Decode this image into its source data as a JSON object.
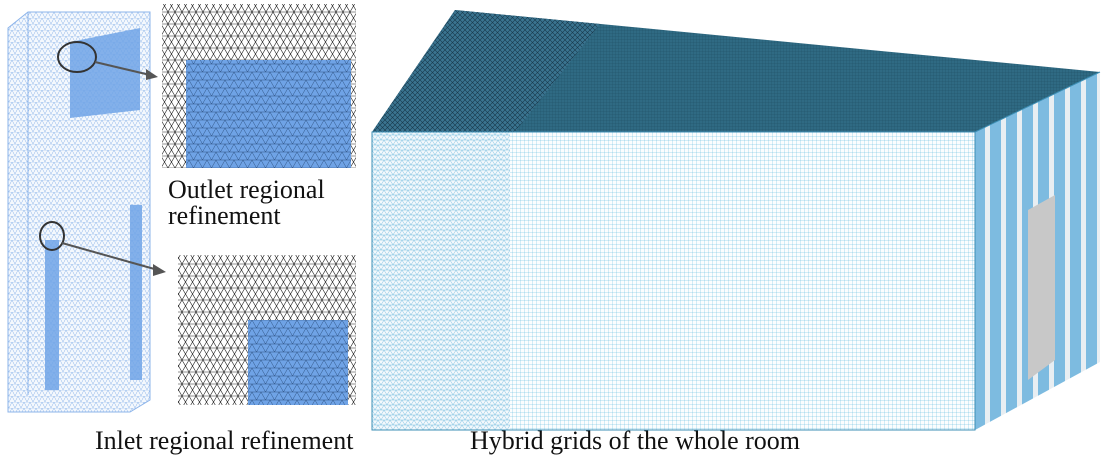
{
  "captions": {
    "outlet_line1": "Outlet regional",
    "outlet_line2": "refinement",
    "inlet": "Inlet regional refinement",
    "room": "Hybrid grids of the whole room"
  }
}
